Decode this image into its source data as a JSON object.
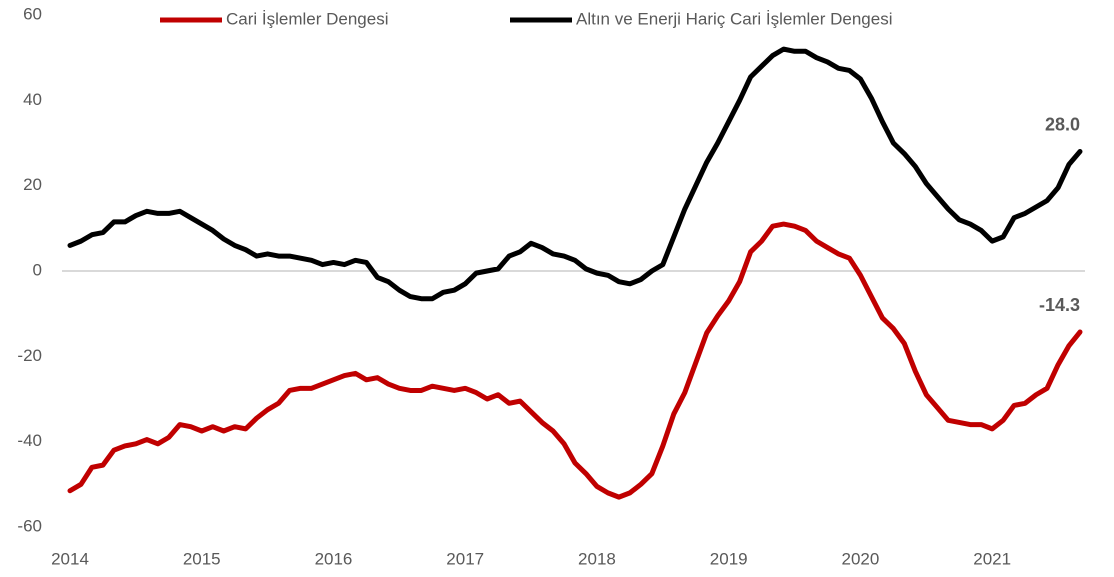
{
  "chart_data": {
    "type": "line",
    "categories": [
      "2014",
      null,
      null,
      null,
      null,
      null,
      null,
      null,
      null,
      null,
      null,
      null,
      "2015",
      null,
      null,
      null,
      null,
      null,
      null,
      null,
      null,
      null,
      null,
      null,
      "2016",
      null,
      null,
      null,
      null,
      null,
      null,
      null,
      null,
      null,
      null,
      null,
      "2017",
      null,
      null,
      null,
      null,
      null,
      null,
      null,
      null,
      null,
      null,
      null,
      "2018",
      null,
      null,
      null,
      null,
      null,
      null,
      null,
      null,
      null,
      null,
      null,
      "2019",
      null,
      null,
      null,
      null,
      null,
      null,
      null,
      null,
      null,
      null,
      null,
      "2020",
      null,
      null,
      null,
      null,
      null,
      null,
      null,
      null,
      null,
      null,
      null,
      "2021",
      null,
      null,
      null,
      null,
      null,
      null,
      null,
      null
    ],
    "series": [
      {
        "name": "Cari İşlemler Dengesi",
        "color": "#c00000",
        "values": [
          -51.5,
          -50,
          -46,
          -45.5,
          -42,
          -41,
          -40.5,
          -39.5,
          -40.5,
          -39,
          -36,
          -36.5,
          -37.5,
          -36.5,
          -37.5,
          -36.5,
          -37,
          -34.5,
          -32.5,
          -31,
          -28,
          -27.5,
          -27.5,
          -26.5,
          -25.5,
          -24.5,
          -24,
          -25.5,
          -25,
          -26.5,
          -27.5,
          -28,
          -28,
          -27,
          -27.5,
          -28,
          -27.5,
          -28.5,
          -30,
          -29,
          -31,
          -30.5,
          -33,
          -35.5,
          -37.5,
          -40.5,
          -45,
          -47.5,
          -50.5,
          -52,
          -53,
          -52,
          -50,
          -47.5,
          -41,
          -33.5,
          -28.5,
          -21.5,
          -14.5,
          -10.5,
          -7,
          -2.5,
          4.5,
          7,
          10.5,
          11,
          10.5,
          9.5,
          7,
          5.5,
          4,
          3,
          -1,
          -6,
          -11,
          -13.5,
          -17,
          -23.5,
          -29,
          -32,
          -35,
          -35.5,
          -36,
          -36,
          -37,
          -35,
          -31.5,
          -31,
          -29,
          -27.5,
          -22,
          -17.5,
          -14.3
        ],
        "value_labels": [
          null,
          null,
          null,
          null,
          null,
          null,
          null,
          null,
          null,
          null,
          null,
          null,
          null,
          null,
          null,
          null,
          null,
          null,
          null,
          null,
          null,
          null,
          null,
          null,
          null,
          null,
          null,
          null,
          null,
          null,
          null,
          null,
          null,
          null,
          null,
          null,
          null,
          null,
          null,
          null,
          null,
          null,
          null,
          null,
          null,
          null,
          null,
          null,
          null,
          null,
          null,
          null,
          null,
          null,
          null,
          null,
          null,
          null,
          null,
          null,
          null,
          null,
          null,
          null,
          null,
          null,
          null,
          null,
          null,
          null,
          null,
          null,
          null,
          null,
          null,
          null,
          null,
          null,
          null,
          null,
          null,
          null,
          null,
          null,
          null,
          null,
          null,
          null,
          null,
          null,
          null,
          null,
          "-14.3"
        ]
      },
      {
        "name": "Altın ve Enerji Hariç Cari İşlemler Dengesi",
        "color": "#000000",
        "values": [
          6,
          7,
          8.5,
          9,
          11.5,
          11.5,
          13,
          14,
          13.5,
          13.5,
          14,
          12.5,
          11,
          9.5,
          7.5,
          6,
          5,
          3.5,
          4,
          3.5,
          3.5,
          3,
          2.5,
          1.5,
          2,
          1.5,
          2.5,
          2,
          -1.5,
          -2.5,
          -4.5,
          -6,
          -6.5,
          -6.5,
          -5,
          -4.5,
          -3,
          -0.5,
          0,
          0.5,
          3.5,
          4.5,
          6.5,
          5.5,
          4,
          3.5,
          2.5,
          0.5,
          -0.5,
          -1,
          -2.5,
          -3,
          -2,
          0,
          1.5,
          8,
          14.5,
          20,
          25.5,
          30,
          35,
          40,
          45.5,
          48,
          50.5,
          52,
          51.5,
          51.5,
          50,
          49,
          47.5,
          47,
          45,
          40.5,
          35,
          30,
          27.5,
          24.5,
          20.5,
          17.5,
          14.5,
          12,
          11,
          9.5,
          7,
          8,
          12.5,
          13.5,
          15,
          16.5,
          19.5,
          25,
          28
        ],
        "value_labels": [
          null,
          null,
          null,
          null,
          null,
          null,
          null,
          null,
          null,
          null,
          null,
          null,
          null,
          null,
          null,
          null,
          null,
          null,
          null,
          null,
          null,
          null,
          null,
          null,
          null,
          null,
          null,
          null,
          null,
          null,
          null,
          null,
          null,
          null,
          null,
          null,
          null,
          null,
          null,
          null,
          null,
          null,
          null,
          null,
          null,
          null,
          null,
          null,
          null,
          null,
          null,
          null,
          null,
          null,
          null,
          null,
          null,
          null,
          null,
          null,
          null,
          null,
          null,
          null,
          null,
          null,
          null,
          null,
          null,
          null,
          null,
          null,
          null,
          null,
          null,
          null,
          null,
          null,
          null,
          null,
          null,
          null,
          null,
          null,
          null,
          null,
          null,
          null,
          null,
          null,
          null,
          null,
          "28.0"
        ]
      }
    ],
    "ylim": [
      -60,
      60
    ],
    "yticks": [
      -60,
      -40,
      -20,
      0,
      20,
      40,
      60
    ],
    "zero_line": true,
    "legend": "top"
  }
}
